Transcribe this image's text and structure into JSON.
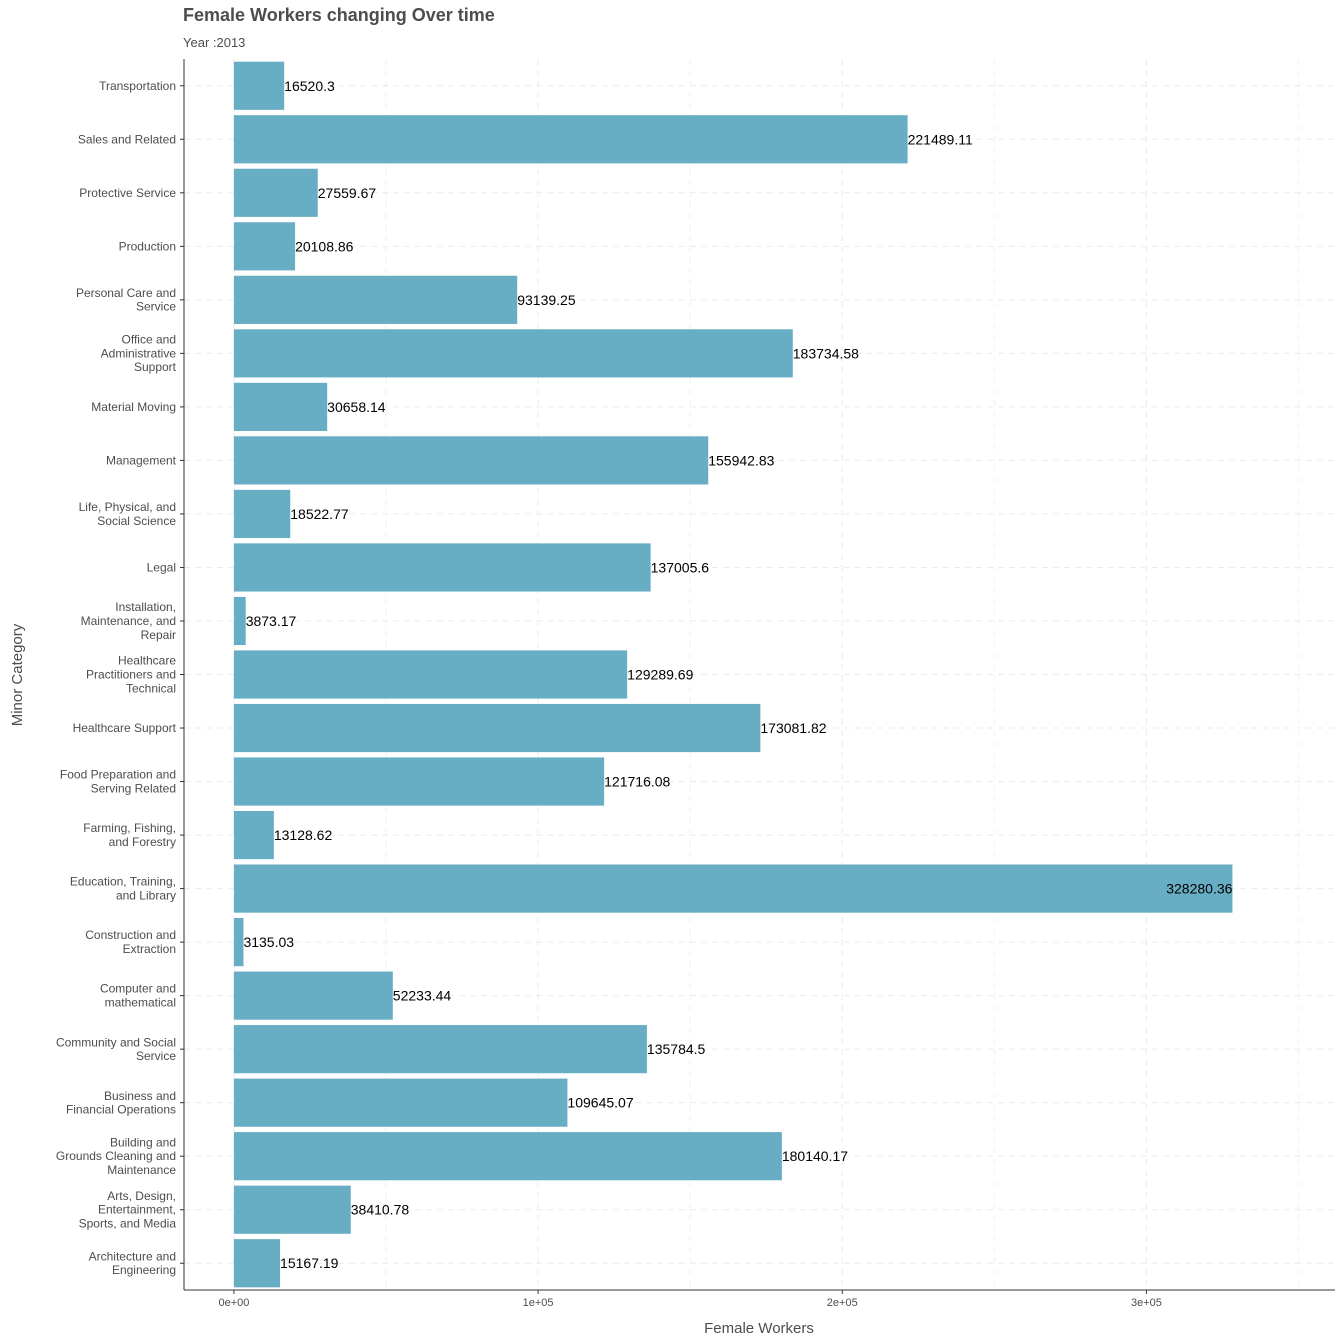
{
  "chart_data": {
    "type": "bar",
    "orientation": "horizontal",
    "title": "Female Workers changing Over time",
    "subtitle": "Year :2013",
    "xlabel": "Female Workers",
    "ylabel": "Minor Category",
    "xlim": [
      -16414,
      362000
    ],
    "x_ticks": [
      {
        "value": 0,
        "label": "0e+00"
      },
      {
        "value": 100000,
        "label": "1e+05"
      },
      {
        "value": 200000,
        "label": "2e+05"
      },
      {
        "value": 300000,
        "label": "3e+05"
      }
    ],
    "grid": true,
    "bar_color": "#67adc3",
    "categories": [
      {
        "label": [
          "Transportation"
        ],
        "value": 16520.3,
        "value_label": "16520.3"
      },
      {
        "label": [
          "Sales and Related"
        ],
        "value": 221489.11,
        "value_label": "221489.11"
      },
      {
        "label": [
          "Protective Service"
        ],
        "value": 27559.67,
        "value_label": "27559.67"
      },
      {
        "label": [
          "Production"
        ],
        "value": 20108.86,
        "value_label": "20108.86"
      },
      {
        "label": [
          "Personal Care and",
          "Service"
        ],
        "value": 93139.25,
        "value_label": "93139.25"
      },
      {
        "label": [
          "Office and",
          "Administrative",
          "Support"
        ],
        "value": 183734.58,
        "value_label": "183734.58"
      },
      {
        "label": [
          "Material Moving"
        ],
        "value": 30658.14,
        "value_label": "30658.14"
      },
      {
        "label": [
          "Management"
        ],
        "value": 155942.83,
        "value_label": "155942.83"
      },
      {
        "label": [
          "Life, Physical, and",
          "Social Science"
        ],
        "value": 18522.77,
        "value_label": "18522.77"
      },
      {
        "label": [
          "Legal"
        ],
        "value": 137005.6,
        "value_label": "137005.6"
      },
      {
        "label": [
          "Installation,",
          "Maintenance, and",
          "Repair"
        ],
        "value": 3873.17,
        "value_label": "3873.17"
      },
      {
        "label": [
          "Healthcare",
          "Practitioners and",
          "Technical"
        ],
        "value": 129289.69,
        "value_label": "129289.69"
      },
      {
        "label": [
          "Healthcare Support"
        ],
        "value": 173081.82,
        "value_label": "173081.82"
      },
      {
        "label": [
          "Food Preparation and",
          "Serving Related"
        ],
        "value": 121716.08,
        "value_label": "121716.08"
      },
      {
        "label": [
          "Farming, Fishing,",
          "and Forestry"
        ],
        "value": 13128.62,
        "value_label": "13128.62"
      },
      {
        "label": [
          "Education, Training,",
          "and Library"
        ],
        "value": 328280.36,
        "value_label": "328280.36"
      },
      {
        "label": [
          "Construction and",
          "Extraction"
        ],
        "value": 3135.03,
        "value_label": "3135.03"
      },
      {
        "label": [
          "Computer and",
          "mathematical"
        ],
        "value": 52233.44,
        "value_label": "52233.44"
      },
      {
        "label": [
          "Community and Social",
          "Service"
        ],
        "value": 135784.5,
        "value_label": "135784.5"
      },
      {
        "label": [
          "Business and",
          "Financial Operations"
        ],
        "value": 109645.07,
        "value_label": "109645.07"
      },
      {
        "label": [
          "Building and",
          "Grounds Cleaning and",
          "Maintenance"
        ],
        "value": 180140.17,
        "value_label": "180140.17"
      },
      {
        "label": [
          "Arts, Design,",
          "Entertainment,",
          "Sports, and Media"
        ],
        "value": 38410.78,
        "value_label": "38410.78"
      },
      {
        "label": [
          "Architecture and",
          "Engineering"
        ],
        "value": 15167.19,
        "value_label": "15167.19"
      }
    ]
  }
}
